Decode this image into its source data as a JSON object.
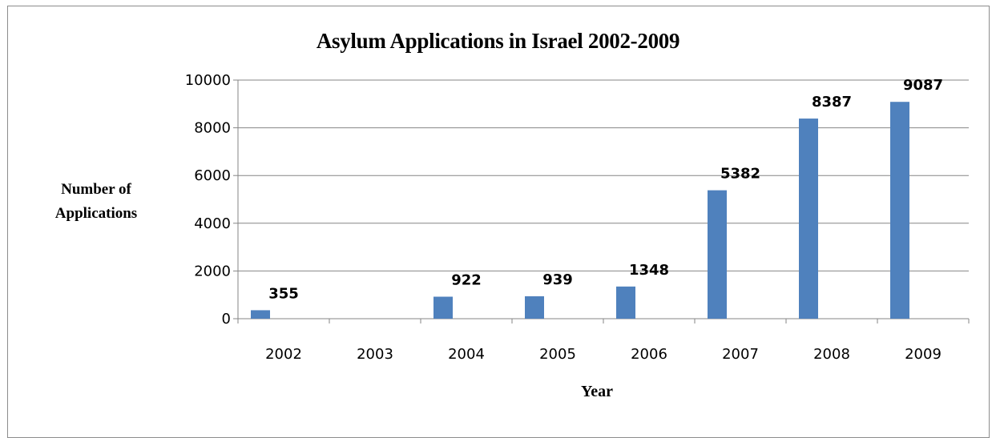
{
  "chart_data": {
    "type": "bar",
    "title": "Asylum Applications in Israel 2002-2009",
    "xlabel": "Year",
    "ylabel": "Number of\nApplications",
    "categories": [
      "2002",
      "2003",
      "2004",
      "2005",
      "2006",
      "2007",
      "2008",
      "2009"
    ],
    "values": [
      355,
      null,
      922,
      939,
      1348,
      5382,
      8387,
      9087
    ],
    "data_labels": [
      "355",
      "",
      "922",
      "939",
      "1348",
      "5382",
      "8387",
      "9087"
    ],
    "ylim": [
      0,
      10000
    ],
    "yticks": [
      0,
      2000,
      4000,
      6000,
      8000,
      10000
    ],
    "ytick_labels": [
      "0",
      "2000",
      "4000",
      "6000",
      "8000",
      "10000"
    ],
    "grid": true,
    "legend": "none",
    "bar_color": "#4f81bd",
    "gridline_color": "#868686"
  }
}
